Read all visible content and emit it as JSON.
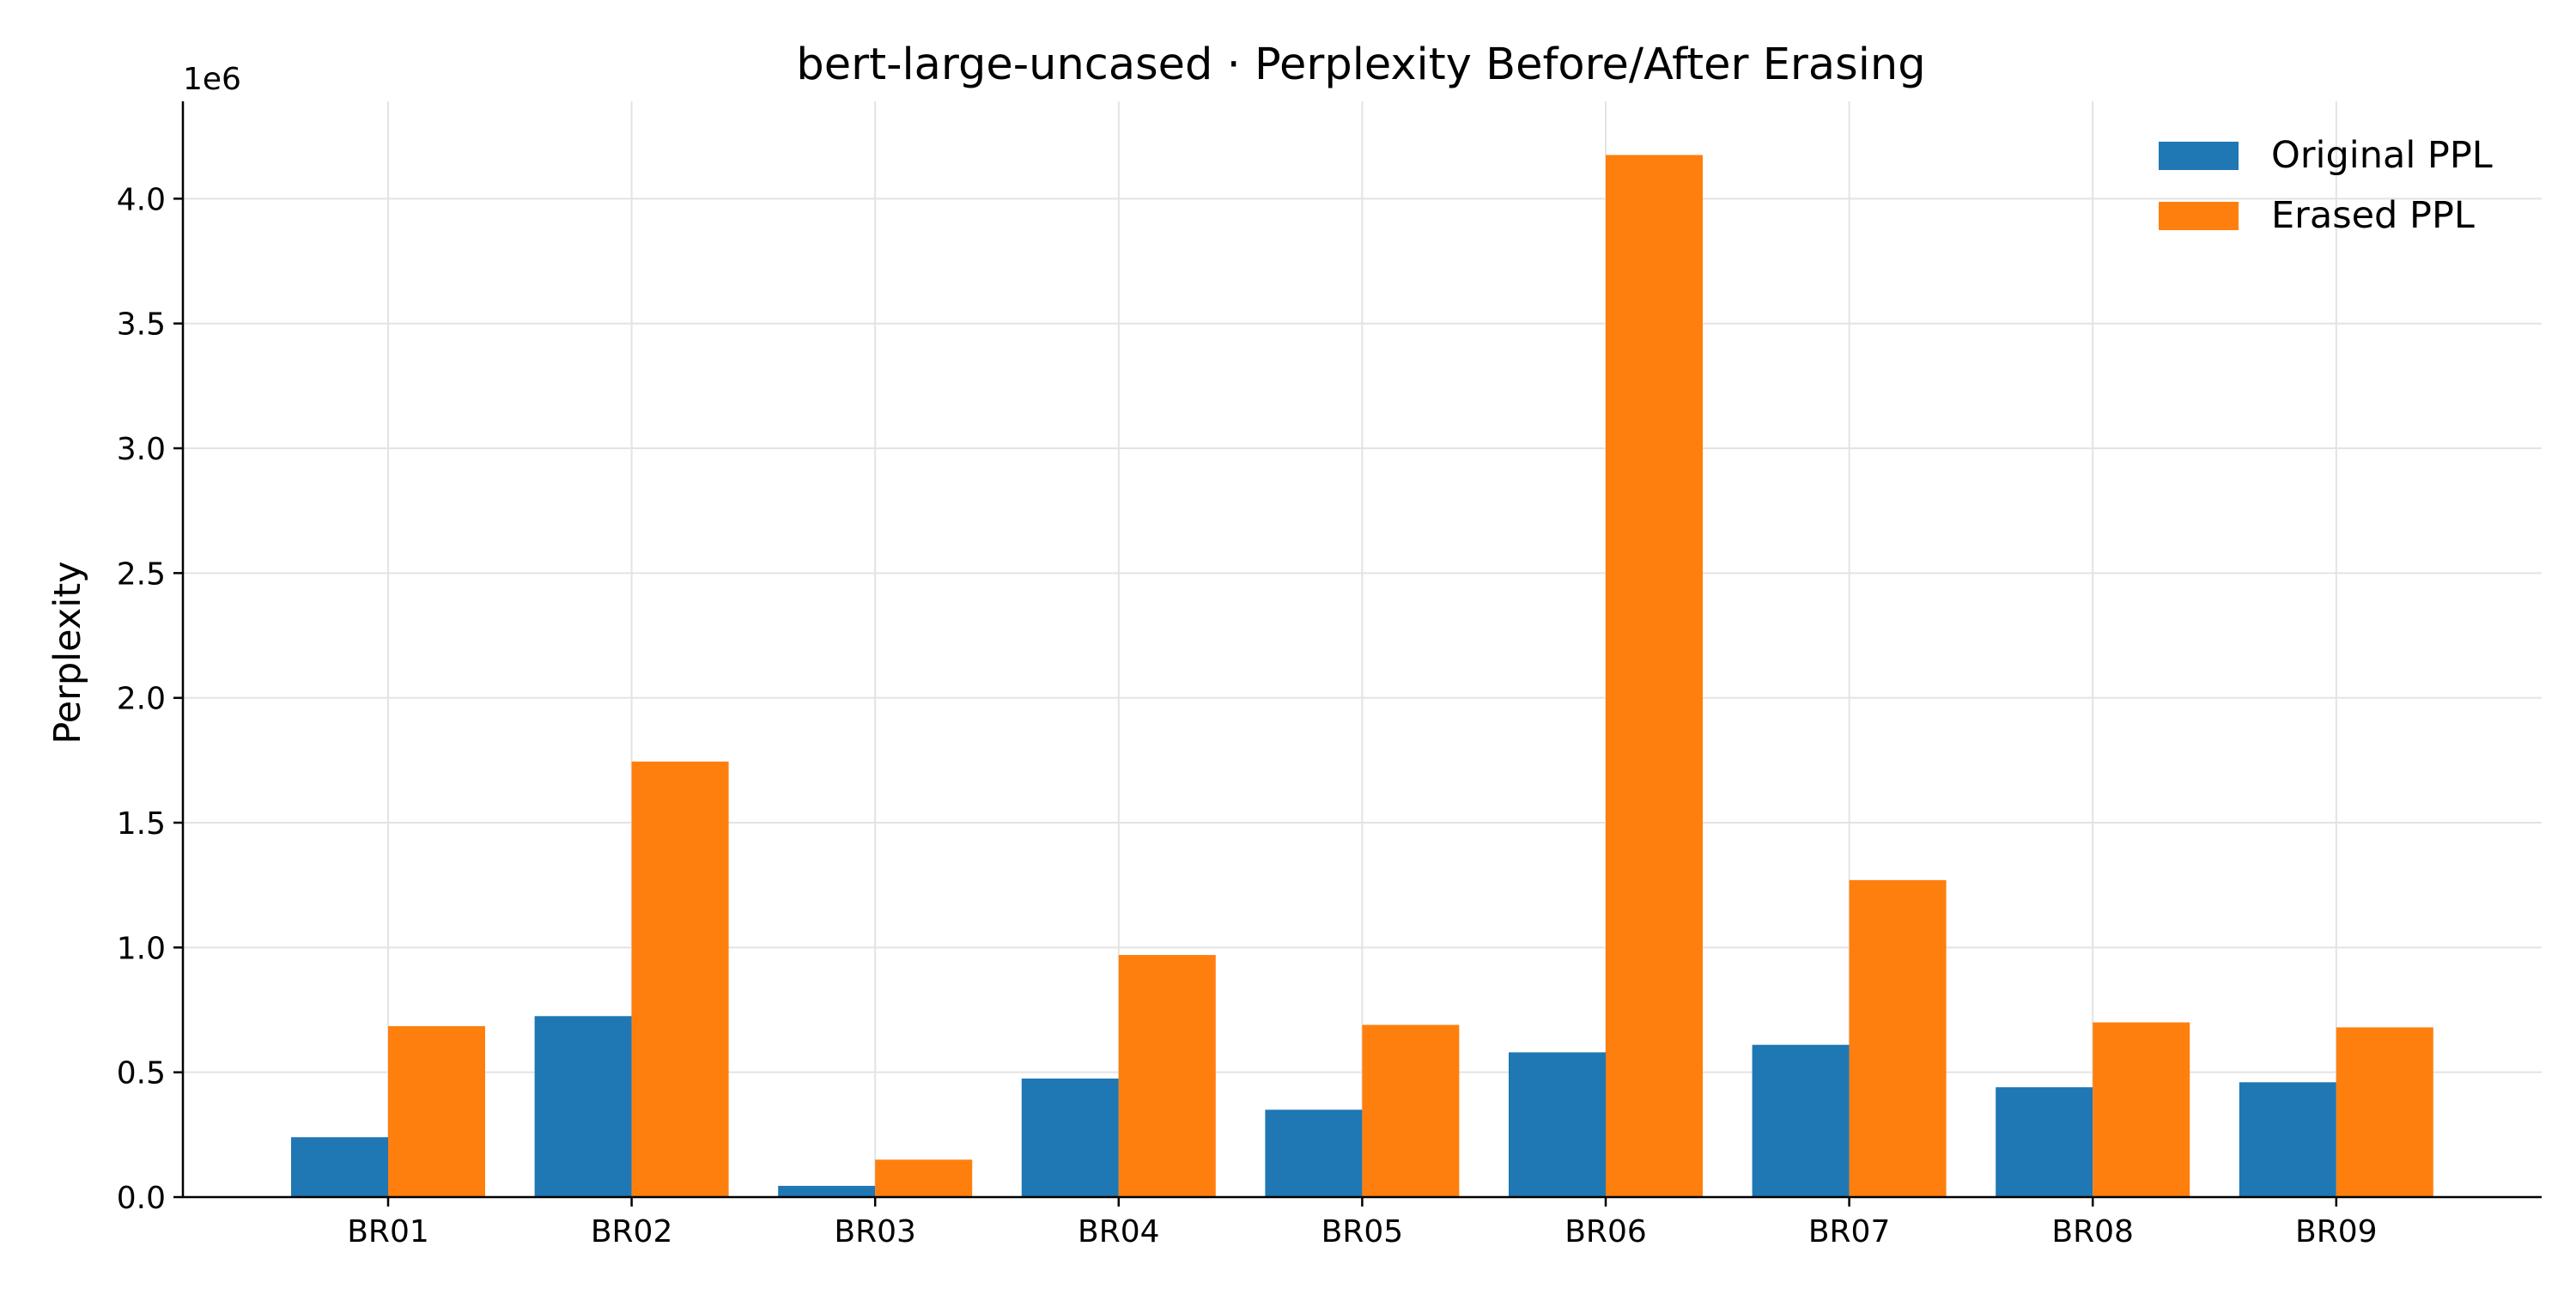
{
  "chart_data": {
    "type": "bar",
    "title": "bert-large-uncased · Perplexity Before/After Erasing",
    "xlabel": "",
    "ylabel": "Perplexity",
    "y_offset_label": "1e6",
    "categories": [
      "BR01",
      "BR02",
      "BR03",
      "BR04",
      "BR05",
      "BR06",
      "BR07",
      "BR08",
      "BR09"
    ],
    "series": [
      {
        "name": "Original PPL",
        "color": "#1f77b4",
        "values": [
          240000,
          725000,
          45000,
          475000,
          350000,
          580000,
          610000,
          440000,
          460000
        ]
      },
      {
        "name": "Erased PPL",
        "color": "#ff7f0e",
        "values": [
          685000,
          1745000,
          150000,
          970000,
          690000,
          4175000,
          1270000,
          700000,
          680000
        ]
      }
    ],
    "ylim": [
      0,
      4390000
    ],
    "yticks": [
      0,
      500000,
      1000000,
      1500000,
      2000000,
      2500000,
      3000000,
      3500000,
      4000000
    ],
    "ytick_labels": [
      "0.0",
      "0.5",
      "1.0",
      "1.5",
      "2.0",
      "2.5",
      "3.0",
      "3.5",
      "4.0"
    ],
    "grid": true,
    "legend_position": "top-right"
  }
}
